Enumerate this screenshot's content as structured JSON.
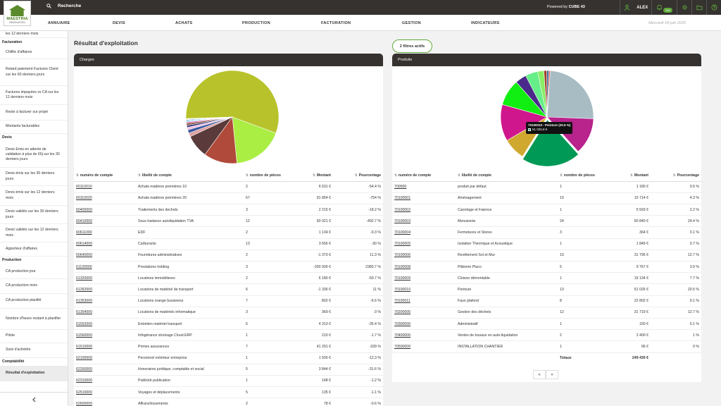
{
  "topbar": {
    "logo_line1": "MAESTRIA",
    "logo_line2": "RÉNOVATION",
    "search_label": "Recherche",
    "powered_prefix": "Powered by ",
    "powered_brand": "CUBE 43",
    "user": "ALEX",
    "notif_count": "942",
    "icons": [
      "user-icon",
      "bell-icon",
      "gear-icon",
      "folder-icon",
      "help-icon"
    ]
  },
  "nav": {
    "items": [
      "ANNUAIRE",
      "DEVIS",
      "ACHATS",
      "PRODUCTION",
      "FACTURATION",
      "GESTION",
      "INDICATEURS"
    ],
    "date": "Mercredi 18 juin 2025"
  },
  "sidebar": {
    "entries": [
      {
        "t": "les 12 derniers mois",
        "k": "e",
        "h": 10
      },
      {
        "t": "Facturation",
        "k": "h",
        "h": 13
      },
      {
        "t": "Chiffre d'affaires",
        "k": "e",
        "h": 17
      },
      {
        "t": "Retard paiement Factures Client sur les 60 derniers jours",
        "k": "e",
        "h": 38
      },
      {
        "t": "Factures impayées vs CA sur les 12 derniers mois",
        "k": "e",
        "h": 27
      },
      {
        "t": "Reste à facturer sur projet",
        "k": "e",
        "h": 22
      },
      {
        "t": "Montants facturables",
        "k": "e",
        "h": 19
      },
      {
        "t": "Devis",
        "k": "h",
        "h": 12
      },
      {
        "t": "Devis Emis en attente de validation à plus de 60j sur les 30 derniers jours",
        "k": "e",
        "h": 36
      },
      {
        "t": "Devis émis sur les 30 derniers jours",
        "k": "e",
        "h": 26
      },
      {
        "t": "Devis émis sur les 12 derniers mois",
        "k": "e",
        "h": 28
      },
      {
        "t": "Devis validés sur les 30 derniers jours",
        "k": "e",
        "h": 26
      },
      {
        "t": "Devis validés sur les 12 derniers mois",
        "k": "e",
        "h": 26
      },
      {
        "t": "Apporteur d'affaires",
        "k": "e",
        "h": 20
      },
      {
        "t": "Production",
        "k": "h",
        "h": 12
      },
      {
        "t": "CA production jour",
        "k": "e",
        "h": 20
      },
      {
        "t": "CA production mois",
        "k": "e",
        "h": 21
      },
      {
        "t": "CA production planifié",
        "k": "e",
        "h": 21
      },
      {
        "t": "Nombre d'heure restant à planifier",
        "k": "e",
        "h": 30
      },
      {
        "t": "Pilote",
        "k": "e",
        "h": 19
      },
      {
        "t": "Suivi d'activités",
        "k": "e",
        "h": 21
      },
      {
        "t": "Comptabilité",
        "k": "h",
        "h": 11
      },
      {
        "t": "Résultat d'exploitation",
        "k": "a",
        "h": 22
      }
    ]
  },
  "page": {
    "title": "Résultat d'exploitation",
    "filters": "2 filtres actifs"
  },
  "headers": {
    "compte": "numéro de compte",
    "libelle": "libellé de compte",
    "pieces": "nombre de pièces",
    "montant": "Montant",
    "pct": "Pourcentage"
  },
  "charges": {
    "title": "Charges",
    "rows": [
      {
        "c": "60110010",
        "l": "Achats matières premières 10",
        "n": "2",
        "m": "6 631 €",
        "p": "-54.4 %"
      },
      {
        "c": "60110020",
        "l": "Achats matières premières 20",
        "n": "67",
        "m": "91 854 €",
        "p": "-754 %"
      },
      {
        "c": "60400000",
        "l": "Traitements des dechets",
        "n": "3",
        "m": "2 215 €",
        "p": "-18.2 %"
      },
      {
        "c": "60410000",
        "l": "Sous traitance autoliquidation TVA",
        "n": "12",
        "m": "60 021 €",
        "p": "-492.7 %"
      },
      {
        "c": "60611000",
        "l": "EDF",
        "n": "2",
        "m": "1 134 €",
        "p": "-9.3 %"
      },
      {
        "c": "60614000",
        "l": "Carburants",
        "n": "13",
        "m": "3 656 €",
        "p": "-30 %"
      },
      {
        "c": "60640000",
        "l": "Fournitures administratives",
        "n": "2",
        "m": "-1 373 €",
        "p": "11.3 %"
      },
      {
        "c": "61120000",
        "l": "Prestations holding",
        "n": "3",
        "m": "-290 000 €",
        "p": "2380.7 %"
      },
      {
        "c": "61320000",
        "l": "Locations immobilieres",
        "n": "2",
        "m": "6 180 €",
        "p": "-50.7 %"
      },
      {
        "c": "61352000",
        "l": "Locations de matériel de transport",
        "n": "6",
        "m": "-1 336 €",
        "p": "11 %"
      },
      {
        "c": "61353000",
        "l": "Locations orange bussiness",
        "n": "7",
        "m": "802 €",
        "p": "-6.6 %"
      },
      {
        "c": "61354000",
        "l": "Locations de matériels informatique",
        "n": "3",
        "m": "369 €",
        "p": "-3 %"
      },
      {
        "c": "61552000",
        "l": "Entretien matériel transport",
        "n": "6",
        "m": "4 313 €",
        "p": "-35.4 %"
      },
      {
        "c": "61560000",
        "l": "Infogérance stockage Cloud ERP",
        "n": "1",
        "m": "210 €",
        "p": "-1.7 %"
      },
      {
        "c": "61610000",
        "l": "Primes assurances",
        "n": "7",
        "m": "41 291 €",
        "p": "-339 %"
      },
      {
        "c": "62100000",
        "l": "Personnel extérieur entreprise",
        "n": "1",
        "m": "1 500 €",
        "p": "-12.3 %"
      },
      {
        "c": "62260000",
        "l": "Honoraires juridique, comptable et social",
        "n": "5",
        "m": "3 844 €",
        "p": "-31.6 %"
      },
      {
        "c": "62310000",
        "l": "Publicité publication",
        "n": "1",
        "m": "148 €",
        "p": "-1.2 %"
      },
      {
        "c": "62510000",
        "l": "Voyages et déplacements",
        "n": "5",
        "m": "135 €",
        "p": "-1.1 %"
      },
      {
        "c": "62600000",
        "l": "Affranchissements",
        "n": "2",
        "m": "78 €",
        "p": "-0.6 %"
      }
    ]
  },
  "produits": {
    "title": "Produits",
    "rows": [
      {
        "c": "700000",
        "l": "produit par défaut",
        "n": "1",
        "m": "1 180 €",
        "p": "0.5 %"
      },
      {
        "c": "70100001",
        "l": "Aménagement",
        "n": "10",
        "m": "10 714 €",
        "p": "4.3 %"
      },
      {
        "c": "70100002",
        "l": "Carrelage et Faience",
        "n": "1",
        "m": "5 593 €",
        "p": "2.2 %"
      },
      {
        "c": "70100003",
        "l": "Menuiserie",
        "n": "24",
        "m": "60 840 €",
        "p": "24.4 %"
      },
      {
        "c": "70100004",
        "l": "Fermetures et Stores",
        "n": "3",
        "m": "364 €",
        "p": "0.1 %"
      },
      {
        "c": "70100005",
        "l": "Isolation Thermique et Acoustique",
        "n": "1",
        "m": "1 849 €",
        "p": "0.7 %"
      },
      {
        "c": "70100006",
        "l": "Revêtement Sol et Mur",
        "n": "10",
        "m": "31 795 €",
        "p": "12.7 %"
      },
      {
        "c": "70100008",
        "l": "Plâtrerie Placo",
        "n": "5",
        "m": "9 767 €",
        "p": "3.9 %"
      },
      {
        "c": "70100009",
        "l": "Cloison démontable",
        "n": "1",
        "m": "19 134 €",
        "p": "7.7 %"
      },
      {
        "c": "70100010",
        "l": "Peinture",
        "n": "13",
        "m": "51 026 €",
        "p": "20.5 %"
      },
      {
        "c": "70100011",
        "l": "Faux plafond",
        "n": "8",
        "m": "22 802 €",
        "p": "9.1 %"
      },
      {
        "c": "70200000",
        "l": "Gestion des déchets",
        "n": "12",
        "m": "31 719 €",
        "p": "12.7 %"
      },
      {
        "c": "70300000",
        "l": "Administratif",
        "n": "1",
        "m": "150 €",
        "p": "0.1 %"
      },
      {
        "c": "70400000",
        "l": "Ventes de travaux en auto-liquidation",
        "n": "2",
        "m": "2 400 €",
        "p": "1 %"
      },
      {
        "c": "70500000",
        "l": "INSTALLATION CHANTIER",
        "n": "1",
        "m": "96 €",
        "p": "0 %"
      }
    ],
    "total_label": "Totaux",
    "total_value": "249 430 €",
    "tooltip_title": "70100010 - Peinture (20.5 %)",
    "tooltip_value": "51 025,8 €",
    "pager_prev": "«",
    "pager_next": "»"
  },
  "chart_data": [
    {
      "type": "pie",
      "title": "Charges",
      "slices": [
        {
          "label": "61120000",
          "value": 2380.7,
          "color": "#b8c22a"
        },
        {
          "label": "60110020",
          "value": 754,
          "color": "#aaee44"
        },
        {
          "label": "60410000",
          "value": 492.7,
          "color": "#b04a3a"
        },
        {
          "label": "61610000",
          "value": 339,
          "color": "#5a3a3a"
        },
        {
          "label": "60110010",
          "value": 54.4,
          "color": "#e0a0a0"
        },
        {
          "label": "61320000",
          "value": 50.7,
          "color": "#3a5aa0"
        },
        {
          "label": "61552000",
          "value": 35.4,
          "color": "#f0c0e0"
        },
        {
          "label": "62260000",
          "value": 31.6,
          "color": "#3a3a80"
        },
        {
          "label": "60614000",
          "value": 30,
          "color": "#8a5a3a"
        },
        {
          "label": "60400000",
          "value": 18.2,
          "color": "#e040b0"
        },
        {
          "label": "62100000",
          "value": 12.3,
          "color": "#4aa0e0"
        },
        {
          "label": "60640000",
          "value": 11.3,
          "color": "#40e0b0"
        },
        {
          "label": "61352000",
          "value": 11,
          "color": "#2a6ad0"
        },
        {
          "label": "60611000",
          "value": 9.3,
          "color": "#c0d060"
        },
        {
          "label": "61353000",
          "value": 6.6,
          "color": "#806040"
        }
      ]
    },
    {
      "type": "pie",
      "title": "Produits",
      "slices": [
        {
          "label": "70100003",
          "value": 24.4,
          "color": "#a8bcc4"
        },
        {
          "label": "70100006",
          "value": 12.7,
          "color": "#b8238c"
        },
        {
          "label": "70100010",
          "value": 20.5,
          "color": "#009955"
        },
        {
          "label": "70100009",
          "value": 7.7,
          "color": "#d0a830"
        },
        {
          "label": "70200000",
          "value": 12.7,
          "color": "#d0168c"
        },
        {
          "label": "70100011",
          "value": 9.1,
          "color": "#11ee11"
        },
        {
          "label": "70100008",
          "value": 3.9,
          "color": "#4a2a8a"
        },
        {
          "label": "70100001",
          "value": 4.3,
          "color": "#66ee88"
        },
        {
          "label": "70100002",
          "value": 2.2,
          "color": "#88ee66"
        },
        {
          "label": "70400000",
          "value": 1,
          "color": "#a03a2a"
        },
        {
          "label": "70100005",
          "value": 0.7,
          "color": "#3a6a9a"
        },
        {
          "label": "700000",
          "value": 0.5,
          "color": "#d06060"
        }
      ]
    }
  ]
}
